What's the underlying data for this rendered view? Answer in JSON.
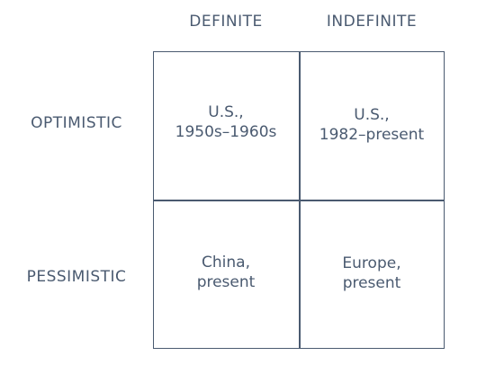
{
  "columns": [
    "DEFINITE",
    "INDEFINITE"
  ],
  "rows": [
    "OPTIMISTIC",
    "PESSIMISTIC"
  ],
  "cells": {
    "optimistic_definite": [
      "U.S.,",
      "1950s–1960s"
    ],
    "optimistic_indefinite": [
      "U.S.,",
      "1982–present"
    ],
    "pessimistic_definite": [
      "China,",
      "present"
    ],
    "pessimistic_indefinite": [
      "Europe,",
      "present"
    ]
  },
  "colors": {
    "ink": "#4a5a70",
    "background": "#ffffff"
  }
}
